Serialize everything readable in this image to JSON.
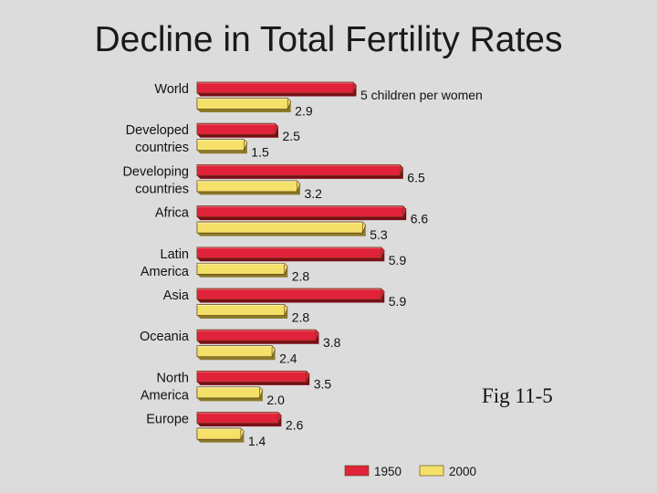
{
  "chart_data": {
    "type": "bar",
    "orientation": "horizontal",
    "title": "Decline in Total Fertility Rates",
    "categories": [
      [
        "World"
      ],
      [
        "Developed",
        "countries"
      ],
      [
        "Developing",
        "countries"
      ],
      [
        "Africa"
      ],
      [
        "Latin",
        "America"
      ],
      [
        "Asia"
      ],
      [
        "Oceania"
      ],
      [
        "North",
        "America"
      ],
      [
        "Europe"
      ]
    ],
    "series": [
      {
        "name": "1950",
        "color": "#e0233a",
        "values": [
          5.0,
          2.5,
          6.5,
          6.6,
          5.9,
          5.9,
          3.8,
          3.5,
          2.6
        ],
        "labels": [
          "5 children per women",
          "2.5",
          "6.5",
          "6.6",
          "5.9",
          "5.9",
          "3.8",
          "3.5",
          "2.6"
        ]
      },
      {
        "name": "2000",
        "color": "#f5e06a",
        "values": [
          2.9,
          1.5,
          3.2,
          5.3,
          2.8,
          2.8,
          2.4,
          2.0,
          1.4
        ],
        "labels": [
          "2.9",
          "1.5",
          "3.2",
          "5.3",
          "2.8",
          "2.8",
          "2.4",
          "2.0",
          "1.4"
        ]
      }
    ],
    "xlim": [
      0,
      7
    ],
    "grid": false,
    "legend": "bottom",
    "annotation": "Fig 11-5"
  }
}
